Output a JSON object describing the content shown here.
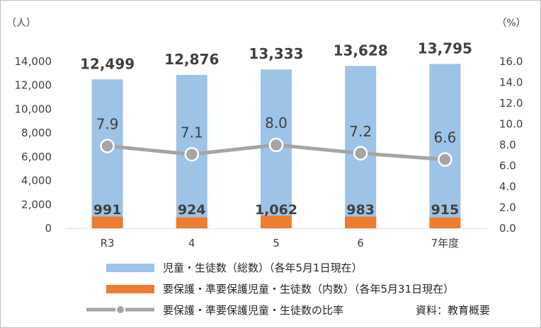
{
  "chart_data": {
    "type": "bar",
    "categories": [
      "R3",
      "4",
      "5",
      "6",
      "7年度"
    ],
    "series": [
      {
        "name": "児童・生徒数（総数）（各年5月1日現在）",
        "type": "bar",
        "axis": "left",
        "values": [
          12499,
          12876,
          13333,
          13628,
          13795
        ],
        "labels": [
          "12,499",
          "12,876",
          "13,333",
          "13,628",
          "13,795"
        ],
        "color": "#9dc3e6"
      },
      {
        "name": "要保護・準要保護児童・生徒数（内数）（各年5月31日現在）",
        "type": "bar",
        "axis": "left",
        "values": [
          991,
          924,
          1062,
          983,
          915
        ],
        "labels": [
          "991",
          "924",
          "1,062",
          "983",
          "915"
        ],
        "color": "#ed7d31"
      },
      {
        "name": "要保護・準要保護児童・生徒数の比率",
        "type": "line",
        "axis": "right",
        "values": [
          7.9,
          7.1,
          8.0,
          7.2,
          6.6
        ],
        "labels": [
          "7.9",
          "7.1",
          "8.0",
          "7.2",
          "6.6"
        ],
        "color": "#a5a5a5"
      }
    ],
    "left_axis": {
      "unit": "（人）",
      "ylim": [
        0,
        14000
      ],
      "ticks": [
        "0",
        "2,000",
        "4,000",
        "6,000",
        "8,000",
        "10,000",
        "12,000",
        "14,000"
      ]
    },
    "right_axis": {
      "unit": "（%）",
      "ylim": [
        0,
        16
      ],
      "ticks": [
        "0.0",
        "2.0",
        "4.0",
        "6.0",
        "8.0",
        "10.0",
        "12.0",
        "14.0",
        "16.0"
      ]
    },
    "source": "資料：教育概要",
    "legend_position": "bottom",
    "grid": false
  }
}
